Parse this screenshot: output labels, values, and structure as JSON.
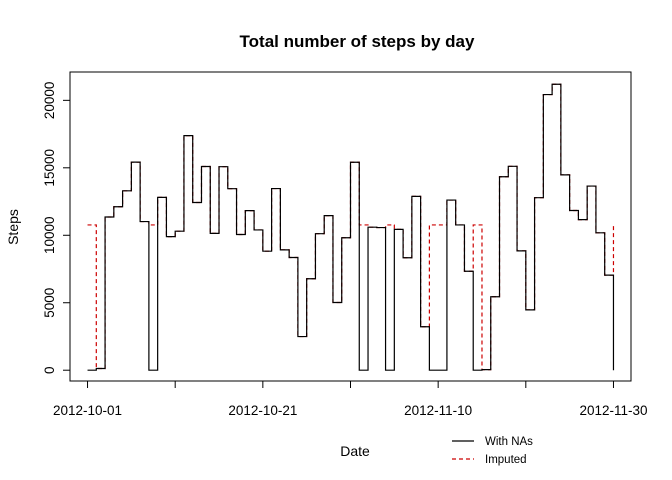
{
  "chart_data": {
    "type": "line",
    "title": "Total number of steps by day",
    "xlabel": "Date",
    "ylabel": "Steps",
    "x": [
      "2012-10-01",
      "2012-10-02",
      "2012-10-03",
      "2012-10-04",
      "2012-10-05",
      "2012-10-06",
      "2012-10-07",
      "2012-10-08",
      "2012-10-09",
      "2012-10-10",
      "2012-10-11",
      "2012-10-12",
      "2012-10-13",
      "2012-10-14",
      "2012-10-15",
      "2012-10-16",
      "2012-10-17",
      "2012-10-18",
      "2012-10-19",
      "2012-10-20",
      "2012-10-21",
      "2012-10-22",
      "2012-10-23",
      "2012-10-24",
      "2012-10-25",
      "2012-10-26",
      "2012-10-27",
      "2012-10-28",
      "2012-10-29",
      "2012-10-30",
      "2012-10-31",
      "2012-11-01",
      "2012-11-02",
      "2012-11-03",
      "2012-11-04",
      "2012-11-05",
      "2012-11-06",
      "2012-11-07",
      "2012-11-08",
      "2012-11-09",
      "2012-11-10",
      "2012-11-11",
      "2012-11-12",
      "2012-11-13",
      "2012-11-14",
      "2012-11-15",
      "2012-11-16",
      "2012-11-17",
      "2012-11-18",
      "2012-11-19",
      "2012-11-20",
      "2012-11-21",
      "2012-11-22",
      "2012-11-23",
      "2012-11-24",
      "2012-11-25",
      "2012-11-26",
      "2012-11-27",
      "2012-11-28",
      "2012-11-29",
      "2012-11-30"
    ],
    "series": [
      {
        "name": "With NAs",
        "color": "#000000",
        "dash": "solid",
        "values": [
          0,
          126,
          11352,
          12116,
          13294,
          15420,
          11015,
          0,
          12811,
          9900,
          10304,
          17382,
          12426,
          15098,
          10139,
          15084,
          13452,
          10056,
          11829,
          10395,
          8821,
          13460,
          8918,
          8355,
          2492,
          6778,
          10119,
          11458,
          5018,
          9819,
          15414,
          0,
          10600,
          10571,
          0,
          10439,
          8334,
          12883,
          3219,
          0,
          0,
          12608,
          10765,
          7336,
          0,
          41,
          5441,
          14339,
          15110,
          8841,
          4472,
          12787,
          20427,
          21194,
          14478,
          11834,
          11162,
          13646,
          10183,
          7047,
          0
        ]
      },
      {
        "name": "Imputed",
        "color": "#cc0000",
        "dash": "dashed",
        "values": [
          10766,
          126,
          11352,
          12116,
          13294,
          15420,
          11015,
          10766,
          12811,
          9900,
          10304,
          17382,
          12426,
          15098,
          10139,
          15084,
          13452,
          10056,
          11829,
          10395,
          8821,
          13460,
          8918,
          8355,
          2492,
          6778,
          10119,
          11458,
          5018,
          9819,
          15414,
          10766,
          10600,
          10571,
          10766,
          10439,
          8334,
          12883,
          3219,
          10766,
          10766,
          12608,
          10765,
          7336,
          10766,
          41,
          5441,
          14339,
          15110,
          8841,
          4472,
          12787,
          20427,
          21194,
          14478,
          11834,
          11162,
          13646,
          10183,
          7047,
          10766
        ]
      }
    ],
    "xticks": [
      "2012-10-01",
      "2012-10-21",
      "2012-11-10",
      "2012-11-30"
    ],
    "xticks_minor": [
      "2012-10-11",
      "2012-10-31",
      "2012-11-20"
    ],
    "yticks": [
      0,
      5000,
      10000,
      15000,
      20000
    ],
    "ytick_labels": [
      "0",
      "5000",
      "10000",
      "15000",
      "20000"
    ],
    "ylim": [
      -800,
      22100
    ],
    "xlim": [
      "2012-09-29",
      "2012-12-02"
    ],
    "grid": false,
    "legend": {
      "position": "bottom-right",
      "entries": [
        "With NAs",
        "Imputed"
      ]
    }
  }
}
